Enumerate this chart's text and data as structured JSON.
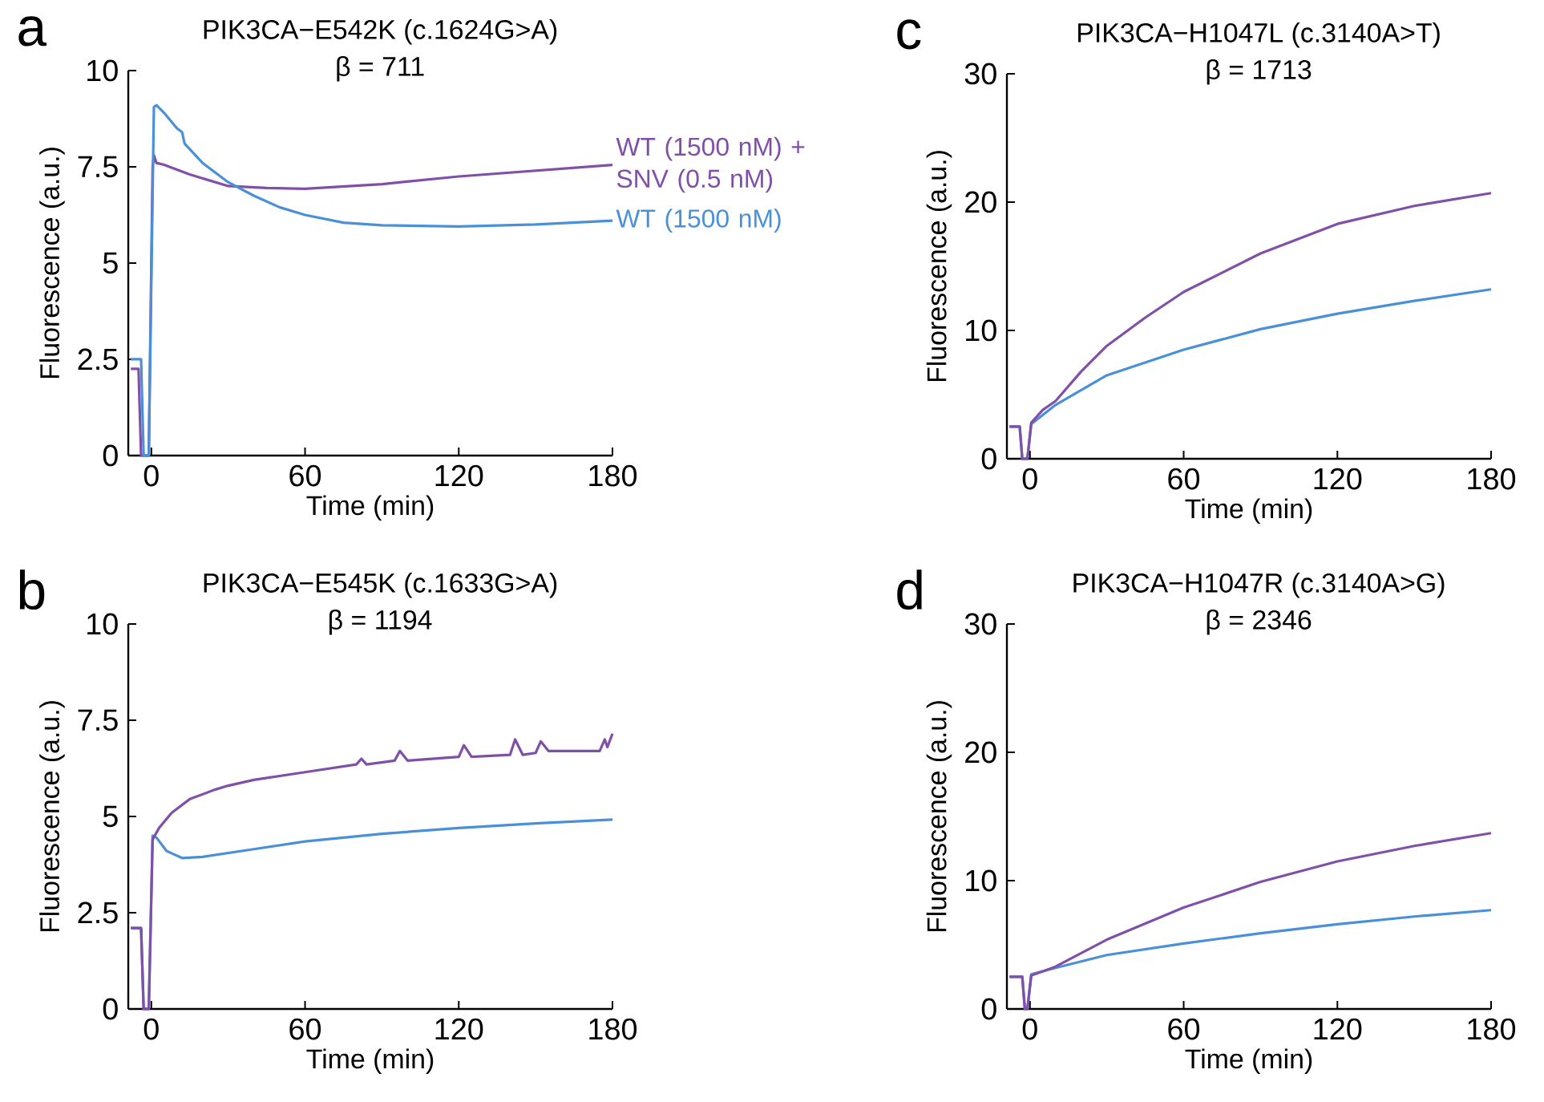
{
  "chart_data": [
    {
      "type": "line",
      "title": "PIK3CA−E542K (c.1624G>A)",
      "subtitle": "β = 711",
      "xlabel": "Time (min)",
      "ylabel": "Fluorescence (a.u.)",
      "annotations": [
        "a"
      ],
      "xlim": [
        -9,
        180
      ],
      "xticks": [
        0,
        60,
        120,
        180
      ],
      "ylim": [
        0,
        10
      ],
      "yticks": [
        0,
        2.5,
        5,
        7.5,
        10
      ],
      "series": [
        {
          "name": "WT (1500 nM) + SNV (0.5 nM)",
          "color": "#8050a8",
          "x": [
            -8,
            -5,
            -4,
            -1,
            0.5,
            1,
            2,
            5,
            15,
            30,
            45,
            60,
            90,
            120,
            150,
            180
          ],
          "values": [
            2.25,
            2.25,
            0,
            0,
            7.5,
            7.8,
            7.6,
            7.55,
            7.3,
            7.0,
            6.95,
            6.93,
            7.05,
            7.25,
            7.4,
            7.55
          ]
        },
        {
          "name": "WT (1500 nM)",
          "color": "#4a90d9",
          "x": [
            -8,
            -4,
            -3,
            -1,
            1,
            2,
            5,
            10,
            12,
            13,
            20,
            30,
            40,
            50,
            60,
            75,
            90,
            120,
            150,
            180
          ],
          "values": [
            2.5,
            2.5,
            0,
            0,
            9.05,
            9.1,
            8.9,
            8.5,
            8.4,
            8.1,
            7.6,
            7.1,
            6.75,
            6.45,
            6.25,
            6.05,
            5.98,
            5.95,
            6.0,
            6.1
          ]
        }
      ]
    },
    {
      "type": "line",
      "title": "PIK3CA−E545K (c.1633G>A)",
      "subtitle": "β = 1194",
      "xlabel": "Time (min)",
      "ylabel": "Fluorescence (a.u.)",
      "annotations": [
        "b"
      ],
      "xlim": [
        -9,
        180
      ],
      "xticks": [
        0,
        60,
        120,
        180
      ],
      "ylim": [
        0,
        10
      ],
      "yticks": [
        0,
        2.5,
        5,
        7.5,
        10
      ],
      "series": [
        {
          "color": "#4a90d9",
          "x": [
            -8,
            -4,
            -3,
            -1,
            0.5,
            2,
            6,
            12,
            20,
            40,
            60,
            90,
            120,
            150,
            180
          ],
          "values": [
            2.1,
            2.1,
            0,
            0,
            4.5,
            4.45,
            4.1,
            3.92,
            3.95,
            4.15,
            4.35,
            4.55,
            4.7,
            4.82,
            4.92
          ]
        },
        {
          "color": "#8050a8",
          "x": [
            -8,
            -4,
            -3,
            -1,
            0.5,
            3,
            8,
            15,
            25,
            30,
            40,
            60,
            80,
            82,
            84,
            95,
            97,
            100,
            120,
            122,
            125,
            140,
            142,
            145,
            150,
            152,
            155,
            175,
            177,
            178,
            180
          ],
          "values": [
            2.1,
            2.1,
            0,
            0,
            4.4,
            4.7,
            5.1,
            5.45,
            5.7,
            5.8,
            5.95,
            6.15,
            6.35,
            6.5,
            6.35,
            6.45,
            6.7,
            6.45,
            6.55,
            6.85,
            6.55,
            6.6,
            7.0,
            6.6,
            6.65,
            6.95,
            6.7,
            6.7,
            7.0,
            6.8,
            7.15
          ]
        }
      ]
    },
    {
      "type": "line",
      "title": "PIK3CA−H1047L (c.3140A>T)",
      "subtitle": "β = 1713",
      "xlabel": "Time (min)",
      "ylabel": "Fluorescence (a.u.)",
      "annotations": [
        "c"
      ],
      "xlim": [
        -9,
        180
      ],
      "xticks": [
        0,
        60,
        120,
        180
      ],
      "ylim": [
        0,
        30
      ],
      "yticks": [
        0,
        10,
        20,
        30
      ],
      "series": [
        {
          "color": "#4a90d9",
          "x": [
            -8,
            -4,
            -3,
            -1,
            0.5,
            10,
            30,
            60,
            90,
            120,
            150,
            180
          ],
          "values": [
            2.5,
            2.5,
            0,
            0,
            2.7,
            4.2,
            6.5,
            8.5,
            10.1,
            11.3,
            12.3,
            13.2
          ]
        },
        {
          "color": "#8050a8",
          "x": [
            -8,
            -4,
            -3,
            -1,
            0.5,
            5,
            10,
            20,
            30,
            45,
            60,
            90,
            120,
            150,
            180
          ],
          "values": [
            2.5,
            2.5,
            0,
            0,
            2.8,
            3.8,
            4.5,
            6.8,
            8.8,
            11.0,
            13.0,
            16.0,
            18.3,
            19.7,
            20.7
          ]
        }
      ]
    },
    {
      "type": "line",
      "title": "PIK3CA−H1047R (c.3140A>G)",
      "subtitle": "β = 2346",
      "xlabel": "Time (min)",
      "ylabel": "Fluorescence (a.u.)",
      "annotations": [
        "d"
      ],
      "xlim": [
        -9,
        180
      ],
      "xticks": [
        0,
        60,
        120,
        180
      ],
      "ylim": [
        0,
        30
      ],
      "yticks": [
        0,
        10,
        20,
        30
      ],
      "series": [
        {
          "color": "#4a90d9",
          "x": [
            -8,
            -3,
            -2,
            -1,
            0.5,
            10,
            30,
            60,
            90,
            120,
            150,
            180
          ],
          "values": [
            2.5,
            2.5,
            0,
            0,
            2.7,
            3.2,
            4.2,
            5.1,
            5.9,
            6.6,
            7.2,
            7.7
          ]
        },
        {
          "color": "#8050a8",
          "x": [
            -8,
            -3,
            -2,
            -1,
            0.5,
            10,
            30,
            60,
            90,
            120,
            150,
            180
          ],
          "values": [
            2.5,
            2.5,
            0,
            0,
            2.6,
            3.3,
            5.4,
            7.9,
            9.9,
            11.5,
            12.7,
            13.7
          ]
        }
      ]
    }
  ]
}
